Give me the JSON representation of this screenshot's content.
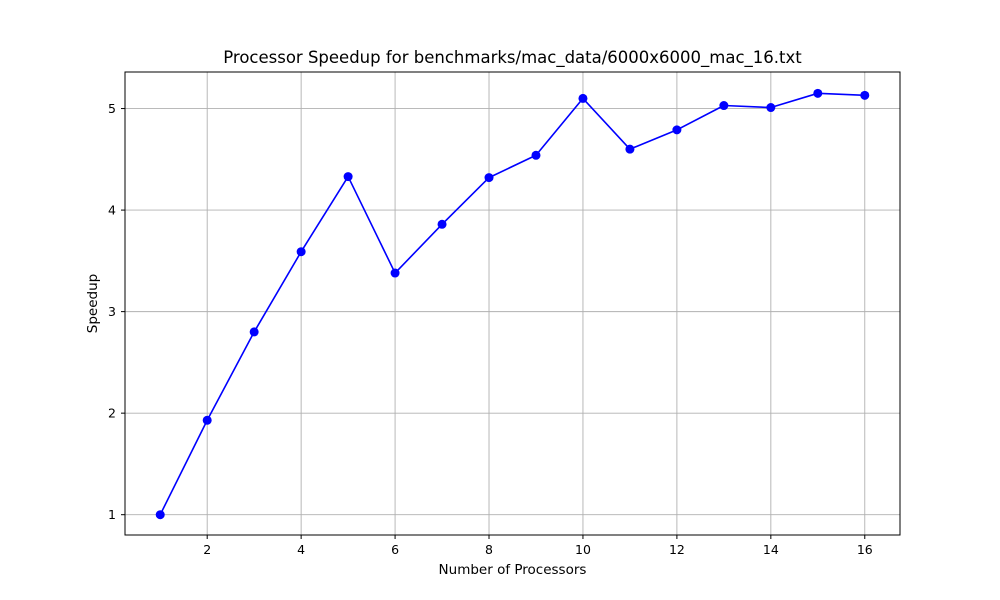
{
  "chart_data": {
    "type": "line",
    "title": "Processor Speedup for benchmarks/mac_data/6000x6000_mac_16.txt",
    "xlabel": "Number of Processors",
    "ylabel": "Speedup",
    "x": [
      1,
      2,
      3,
      4,
      5,
      6,
      7,
      8,
      9,
      10,
      11,
      12,
      13,
      14,
      15,
      16
    ],
    "series": [
      {
        "values": [
          1.0,
          1.93,
          2.8,
          3.59,
          4.33,
          3.38,
          3.86,
          4.32,
          4.54,
          5.1,
          4.6,
          4.79,
          5.03,
          5.01,
          5.15,
          5.13
        ],
        "color": "#0000ff",
        "marker": "circle"
      }
    ],
    "xlim": [
      0.25,
      16.75
    ],
    "ylim": [
      0.8,
      5.36
    ],
    "xticks": [
      2,
      4,
      6,
      8,
      10,
      12,
      14,
      16
    ],
    "yticks": [
      1,
      2,
      3,
      4,
      5
    ],
    "grid": true,
    "grid_color": "#b0b0b0"
  }
}
